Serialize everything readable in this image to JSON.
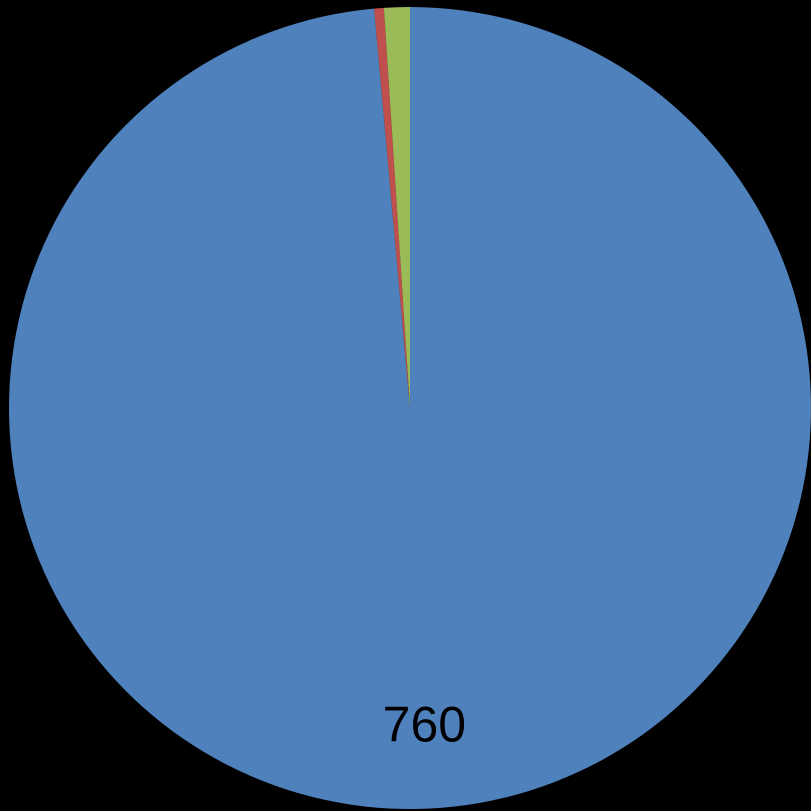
{
  "chart_data": {
    "type": "pie",
    "start_angle_deg": 0,
    "direction": "clockwise",
    "slices": [
      {
        "value": 760,
        "color": "#4F81BD",
        "label": "760"
      },
      {
        "value": 3,
        "color": "#C0504D",
        "label": ""
      },
      {
        "value": 8,
        "color": "#9BBB59",
        "label": ""
      }
    ]
  },
  "background_color": "#000000"
}
